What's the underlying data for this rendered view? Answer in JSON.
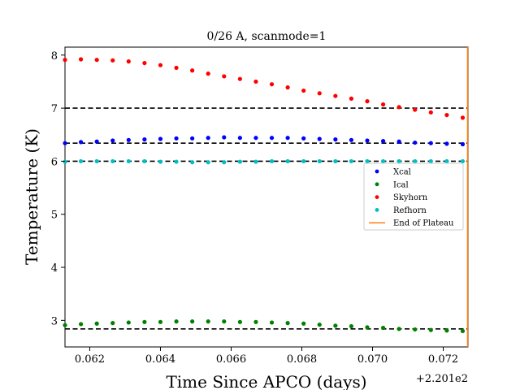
{
  "chart_data": {
    "type": "scatter",
    "title": "0/26 A, scanmode=1",
    "xlabel": "Time Since APCO (days)",
    "ylabel": "Temperature (K)",
    "x_offset_label": "+2.201e2",
    "xlim": [
      0.0613,
      0.0727
    ],
    "ylim": [
      2.5,
      8.15
    ],
    "x_ticks": [
      0.062,
      0.064,
      0.066,
      0.068,
      0.07,
      0.072
    ],
    "x_tick_labels": [
      "0.062",
      "0.064",
      "0.066",
      "0.068",
      "0.070",
      "0.072"
    ],
    "y_ticks": [
      3,
      4,
      5,
      6,
      7,
      8
    ],
    "y_tick_labels": [
      "3",
      "4",
      "5",
      "6",
      "7",
      "8"
    ],
    "grid": false,
    "legend_position": "center-right",
    "x": [
      0.0613,
      0.06175,
      0.0622,
      0.06265,
      0.0631,
      0.06355,
      0.064,
      0.06445,
      0.0649,
      0.06535,
      0.0658,
      0.06625,
      0.0667,
      0.06715,
      0.0676,
      0.06805,
      0.0685,
      0.06895,
      0.0694,
      0.06985,
      0.0703,
      0.07075,
      0.0712,
      0.07165,
      0.0721,
      0.07255
    ],
    "series": [
      {
        "name": "Xcal",
        "color": "#0000ff",
        "values": [
          6.34,
          6.36,
          6.37,
          6.39,
          6.4,
          6.41,
          6.42,
          6.43,
          6.43,
          6.44,
          6.45,
          6.44,
          6.44,
          6.44,
          6.44,
          6.43,
          6.42,
          6.41,
          6.4,
          6.39,
          6.38,
          6.37,
          6.35,
          6.34,
          6.33,
          6.32
        ]
      },
      {
        "name": "Ical",
        "color": "#008000",
        "values": [
          2.91,
          2.93,
          2.94,
          2.95,
          2.96,
          2.97,
          2.97,
          2.98,
          2.98,
          2.98,
          2.98,
          2.97,
          2.97,
          2.96,
          2.95,
          2.94,
          2.92,
          2.9,
          2.89,
          2.87,
          2.86,
          2.84,
          2.83,
          2.82,
          2.81,
          2.8
        ]
      },
      {
        "name": "Skyhorn",
        "color": "#ff0000",
        "values": [
          7.91,
          7.92,
          7.91,
          7.9,
          7.88,
          7.85,
          7.81,
          7.76,
          7.71,
          7.65,
          7.6,
          7.55,
          7.5,
          7.45,
          7.39,
          7.33,
          7.28,
          7.23,
          7.18,
          7.13,
          7.07,
          7.02,
          6.97,
          6.92,
          6.87,
          6.82
        ]
      },
      {
        "name": "Refhorn",
        "color": "#00bfbf",
        "values": [
          5.99,
          6.0,
          6.0,
          6.0,
          6.0,
          6.0,
          5.99,
          5.99,
          5.98,
          5.98,
          5.98,
          5.99,
          5.99,
          6.0,
          6.0,
          6.0,
          6.0,
          6.0,
          6.0,
          6.0,
          6.0,
          6.0,
          6.0,
          6.0,
          6.0,
          6.0
        ]
      }
    ],
    "reference_lines": {
      "style": "dashed",
      "color": "#000000",
      "y": [
        7.0,
        6.34,
        6.0,
        2.84
      ]
    },
    "end_of_plateau": {
      "name": "End of Plateau",
      "color": "#ff7f0e",
      "x": 0.0727
    }
  }
}
